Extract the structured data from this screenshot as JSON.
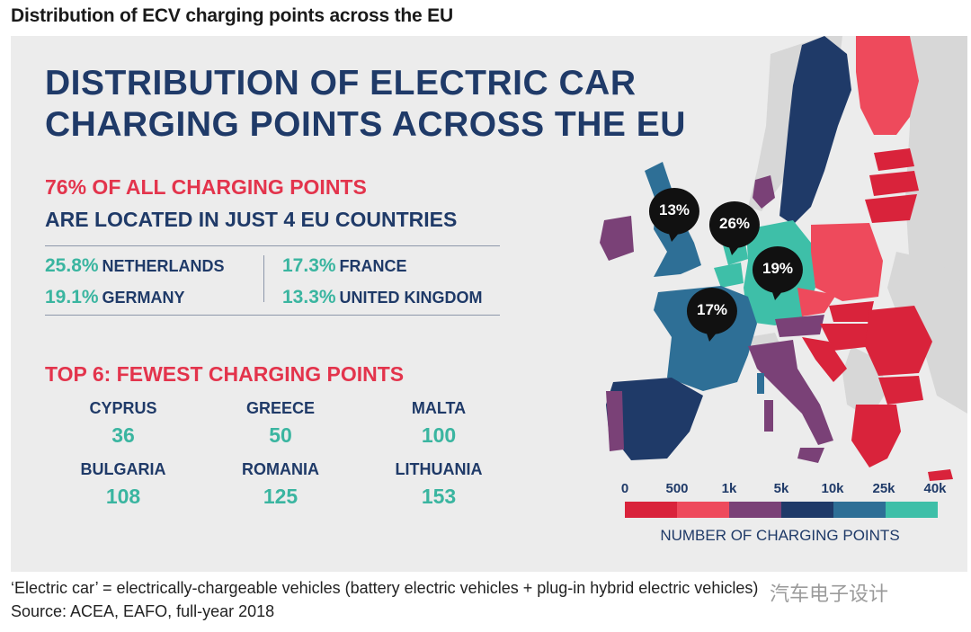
{
  "page_title": "Distribution of ECV charging points across the EU",
  "headline": [
    "DISTRIBUTION OF ELECTRIC CAR",
    "CHARGING POINTS ACROSS THE EU"
  ],
  "highlight": {
    "line1": "76% OF ALL CHARGING POINTS",
    "line2": "ARE LOCATED IN JUST 4 EU COUNTRIES"
  },
  "top4": [
    {
      "pct": "25.8%",
      "country": "NETHERLANDS"
    },
    {
      "pct": "19.1%",
      "country": "GERMANY"
    },
    {
      "pct": "17.3%",
      "country": "FRANCE"
    },
    {
      "pct": "13.3%",
      "country": "UNITED KINGDOM"
    }
  ],
  "fewest_title": "TOP 6: FEWEST CHARGING POINTS",
  "fewest": [
    {
      "country": "CYPRUS",
      "value": "36"
    },
    {
      "country": "GREECE",
      "value": "50"
    },
    {
      "country": "MALTA",
      "value": "100"
    },
    {
      "country": "BULGARIA",
      "value": "108"
    },
    {
      "country": "ROMANIA",
      "value": "125"
    },
    {
      "country": "LITHUANIA",
      "value": "153"
    }
  ],
  "map_bubbles": [
    {
      "label": "13%",
      "country": "United Kingdom"
    },
    {
      "label": "26%",
      "country": "Netherlands"
    },
    {
      "label": "19%",
      "country": "Germany"
    },
    {
      "label": "17%",
      "country": "France"
    }
  ],
  "legend": {
    "ticks": [
      "0",
      "500",
      "1k",
      "5k",
      "10k",
      "25k",
      "40k"
    ],
    "colors": [
      "#d9233b",
      "#ee4a5c",
      "#7a4177",
      "#1f3a68",
      "#2e6f96",
      "#3ebfa8"
    ],
    "title": "NUMBER OF CHARGING POINTS"
  },
  "chart_data": {
    "type": "choropleth",
    "title": "DISTRIBUTION OF ELECTRIC CAR CHARGING POINTS ACROSS THE EU",
    "share_top4_percent": 76,
    "top4_shares": {
      "categories": [
        "NETHERLANDS",
        "GERMANY",
        "FRANCE",
        "UNITED KINGDOM"
      ],
      "values": [
        25.8,
        19.1,
        17.3,
        13.3
      ]
    },
    "fewest_points": {
      "categories": [
        "CYPRUS",
        "GREECE",
        "MALTA",
        "BULGARIA",
        "ROMANIA",
        "LITHUANIA"
      ],
      "values": [
        36,
        50,
        100,
        108,
        125,
        153
      ]
    },
    "legend_bins": [
      "0",
      "500",
      "1k",
      "5k",
      "10k",
      "25k",
      "40k"
    ]
  },
  "footnote": "‘Electric car’ = electrically-chargeable vehicles (battery electric vehicles + plug-in hybrid electric vehicles)",
  "source": "Source: ACEA, EAFO, full-year 2018",
  "watermark": "汽车电子设计"
}
